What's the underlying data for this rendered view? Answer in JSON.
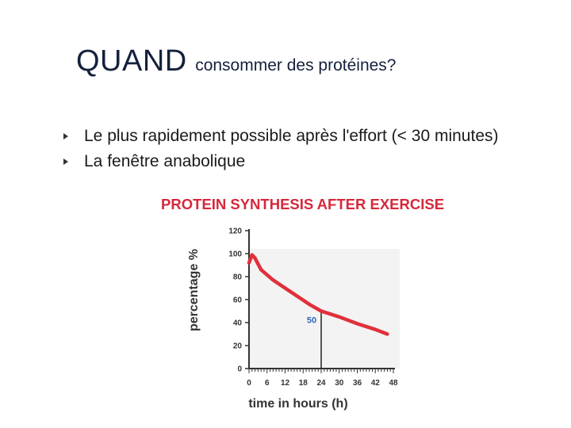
{
  "slide": {
    "title_main": "QUAND",
    "title_sub": "consommer des protéines?",
    "bullets": [
      "Le plus rapidement possible après l'effort (< 30 minutes)",
      "La fenêtre anabolique"
    ]
  },
  "colors": {
    "title": "#14213d",
    "chart_title": "#d6283c",
    "curve": "#e0303b",
    "annotation": "#3566b8",
    "axis": "#333333"
  },
  "chart_data": {
    "type": "line",
    "title": "PROTEIN SYNTHESIS  AFTER EXERCISE",
    "xlabel": "time in hours (h)",
    "ylabel": "percentage %",
    "xlim": [
      0,
      48
    ],
    "ylim": [
      0,
      120
    ],
    "x_ticks": [
      "0",
      "6",
      "12",
      "18",
      "24",
      "30",
      "36",
      "42",
      "48"
    ],
    "y_ticks": [
      "0",
      "20",
      "40",
      "60",
      "80",
      "100",
      "120"
    ],
    "grid": false,
    "series": [
      {
        "x": [
          0,
          1,
          2,
          4,
          8,
          12,
          16,
          20,
          24,
          30,
          36,
          42,
          46
        ],
        "y": [
          92,
          99,
          96,
          86,
          77,
          70,
          63,
          56,
          50,
          45,
          39,
          34,
          30
        ]
      }
    ],
    "annotations": [
      {
        "label": "50",
        "x": 24,
        "y": 50
      }
    ]
  }
}
